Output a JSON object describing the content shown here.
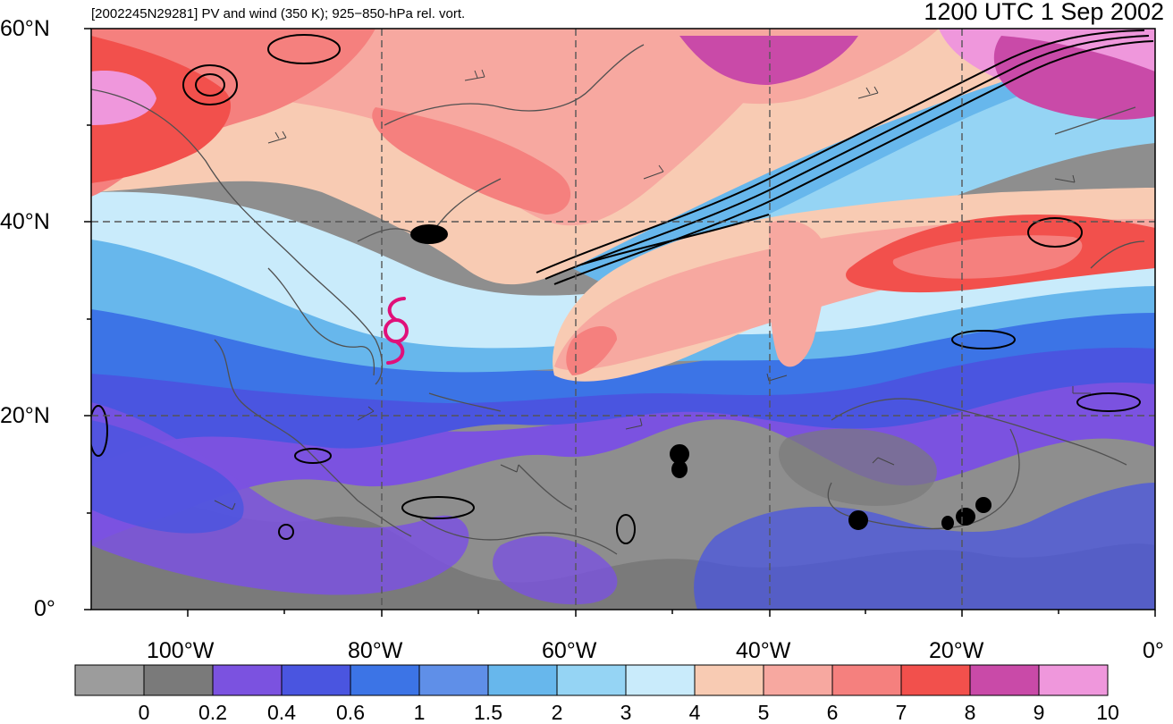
{
  "header": {
    "subtitle": "[2002245N29281] PV and wind (350 K); 925−850-hPa rel. vort.",
    "valid_time": "1200 UTC 1 Sep 2002"
  },
  "map": {
    "latitude_labels": [
      "60°N",
      "40°N",
      "20°N",
      "0°"
    ],
    "longitude_labels": [
      "100°W",
      "80°W",
      "60°W",
      "40°W",
      "20°W",
      "0°"
    ],
    "storm_symbol": "tropical-cyclone-icon",
    "storm_color": "#e0107a"
  },
  "colorbar": {
    "tick_labels": [
      "0",
      "0.2",
      "0.4",
      "0.6",
      "1",
      "1.5",
      "2",
      "3",
      "4",
      "5",
      "6",
      "7",
      "8",
      "9",
      "10"
    ],
    "colors": [
      "#9c9c9c",
      "#7a7a7a",
      "#7b52e0",
      "#4a55e0",
      "#3c74e6",
      "#5f8fe8",
      "#67b7ec",
      "#95d4f4",
      "#c9ebfb",
      "#f8cbb3",
      "#f7a8a0",
      "#f5807e",
      "#f2504c",
      "#c94aa8",
      "#ef97dc"
    ]
  }
}
